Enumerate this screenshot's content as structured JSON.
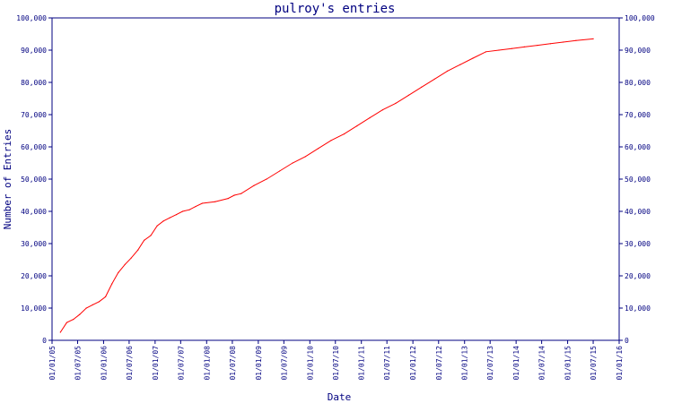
{
  "chart_data": {
    "type": "line",
    "title": "pulroy's entries",
    "xlabel": "Date",
    "ylabel": "Number of Entries",
    "x_ticks": [
      "01/01/05",
      "01/07/05",
      "01/01/06",
      "01/07/06",
      "01/01/07",
      "01/07/07",
      "01/01/08",
      "01/07/08",
      "01/01/09",
      "01/07/09",
      "01/01/10",
      "01/07/10",
      "01/01/11",
      "01/07/11",
      "01/01/12",
      "01/07/12",
      "01/01/13",
      "01/07/13",
      "01/01/14",
      "01/07/14",
      "01/01/15",
      "01/07/15",
      "01/01/16"
    ],
    "y_ticks": [
      "0",
      "10,000",
      "20,000",
      "30,000",
      "40,000",
      "50,000",
      "60,000",
      "70,000",
      "80,000",
      "90,000",
      "100,000"
    ],
    "ylim": [
      0,
      100000
    ],
    "grid": false,
    "colors": {
      "axis": "#000080",
      "line": "#ff0000"
    },
    "series": [
      {
        "points": [
          [
            "2005-03-01",
            2500
          ],
          [
            "2005-04-15",
            5500
          ],
          [
            "2005-06-01",
            6500
          ],
          [
            "2005-07-15",
            8000
          ],
          [
            "2005-09-01",
            10000
          ],
          [
            "2005-10-15",
            11000
          ],
          [
            "2005-12-01",
            12000
          ],
          [
            "2006-01-15",
            13500
          ],
          [
            "2006-03-01",
            17500
          ],
          [
            "2006-04-15",
            21000
          ],
          [
            "2006-06-01",
            23500
          ],
          [
            "2006-07-15",
            25500
          ],
          [
            "2006-09-01",
            28000
          ],
          [
            "2006-10-15",
            31000
          ],
          [
            "2006-12-01",
            32500
          ],
          [
            "2007-01-15",
            35500
          ],
          [
            "2007-03-01",
            37000
          ],
          [
            "2007-04-15",
            38000
          ],
          [
            "2007-06-01",
            39000
          ],
          [
            "2007-07-15",
            40000
          ],
          [
            "2007-09-01",
            40500
          ],
          [
            "2007-10-15",
            41500
          ],
          [
            "2007-12-01",
            42500
          ],
          [
            "2008-03-01",
            43000
          ],
          [
            "2008-06-01",
            44000
          ],
          [
            "2008-07-15",
            45000
          ],
          [
            "2008-09-01",
            45500
          ],
          [
            "2008-12-01",
            48000
          ],
          [
            "2009-03-01",
            50000
          ],
          [
            "2009-06-01",
            52500
          ],
          [
            "2009-09-01",
            55000
          ],
          [
            "2009-12-01",
            57000
          ],
          [
            "2010-03-01",
            59500
          ],
          [
            "2010-06-01",
            62000
          ],
          [
            "2010-09-01",
            64000
          ],
          [
            "2010-12-01",
            66500
          ],
          [
            "2011-03-01",
            69000
          ],
          [
            "2011-06-01",
            71500
          ],
          [
            "2011-09-01",
            73500
          ],
          [
            "2011-12-01",
            76000
          ],
          [
            "2012-03-01",
            78500
          ],
          [
            "2012-06-01",
            81000
          ],
          [
            "2012-09-01",
            83500
          ],
          [
            "2012-12-01",
            85500
          ],
          [
            "2013-03-01",
            87500
          ],
          [
            "2013-06-01",
            89500
          ],
          [
            "2013-09-01",
            90000
          ],
          [
            "2013-12-01",
            90500
          ],
          [
            "2014-03-01",
            91000
          ],
          [
            "2014-06-01",
            91500
          ],
          [
            "2014-09-01",
            92000
          ],
          [
            "2014-12-01",
            92500
          ],
          [
            "2015-03-01",
            93000
          ],
          [
            "2015-07-01",
            93500
          ]
        ]
      }
    ]
  }
}
